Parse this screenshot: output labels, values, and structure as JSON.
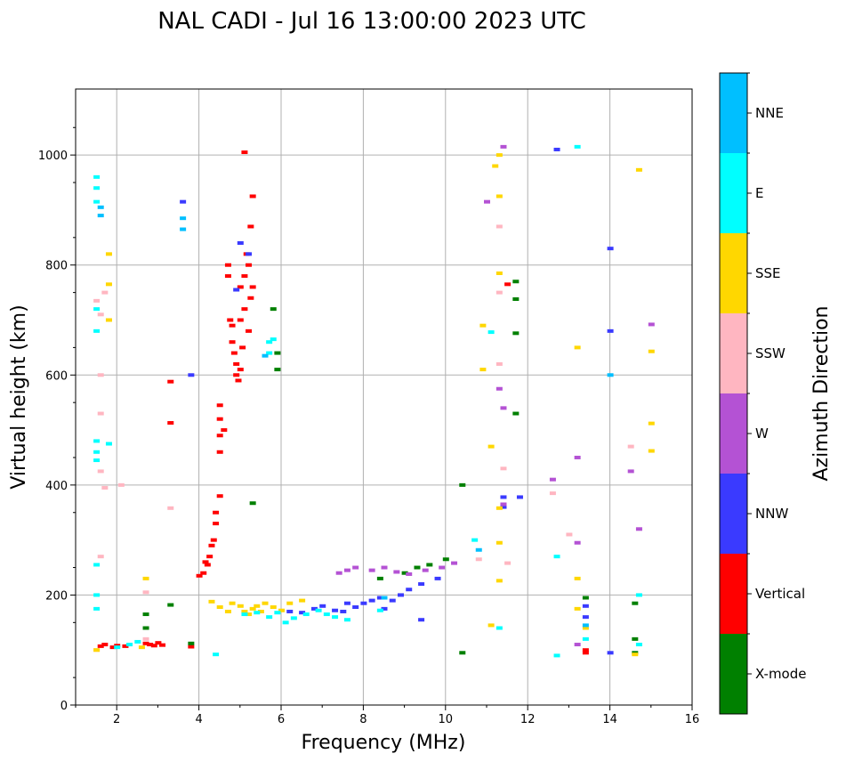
{
  "chart_data": {
    "type": "scatter",
    "title": "NAL CADI - Jul 16 13:00:00 2023 UTC",
    "xlabel": "Frequency (MHz)",
    "ylabel": "Virtual height (km)",
    "xlim": [
      1,
      16
    ],
    "ylim": [
      0,
      1120
    ],
    "xticks": [
      2,
      4,
      6,
      8,
      10,
      12,
      14,
      16
    ],
    "yticks": [
      0,
      200,
      400,
      600,
      800,
      1000
    ],
    "grid": true,
    "colorbar": {
      "label": "Azimuth Direction",
      "categories": [
        "X-mode",
        "Vertical",
        "NNW",
        "W",
        "SSW",
        "SSE",
        "E",
        "NNE"
      ],
      "colors": [
        "#008000",
        "#ff0000",
        "#3a3aff",
        "#b452d4",
        "#ffb6c1",
        "#ffd700",
        "#00ffff",
        "#00bfff"
      ]
    },
    "series": [
      {
        "name": "Vertical",
        "points": [
          [
            1.6,
            107
          ],
          [
            1.7,
            110
          ],
          [
            1.9,
            105
          ],
          [
            2.0,
            108
          ],
          [
            2.2,
            107
          ],
          [
            2.7,
            112
          ],
          [
            2.8,
            110
          ],
          [
            2.9,
            108
          ],
          [
            3.0,
            113
          ],
          [
            3.1,
            109
          ],
          [
            3.3,
            588
          ],
          [
            3.3,
            513
          ],
          [
            3.8,
            106
          ],
          [
            4.0,
            235
          ],
          [
            4.1,
            240
          ],
          [
            4.15,
            260
          ],
          [
            4.2,
            255
          ],
          [
            4.25,
            270
          ],
          [
            4.3,
            290
          ],
          [
            4.35,
            300
          ],
          [
            4.4,
            330
          ],
          [
            4.4,
            350
          ],
          [
            4.5,
            380
          ],
          [
            4.5,
            460
          ],
          [
            4.5,
            490
          ],
          [
            4.5,
            520
          ],
          [
            4.5,
            545
          ],
          [
            4.6,
            500
          ],
          [
            4.7,
            800
          ],
          [
            4.7,
            780
          ],
          [
            4.75,
            700
          ],
          [
            4.8,
            690
          ],
          [
            4.8,
            660
          ],
          [
            4.85,
            640
          ],
          [
            4.9,
            620
          ],
          [
            4.9,
            600
          ],
          [
            4.95,
            590
          ],
          [
            5.0,
            610
          ],
          [
            5.0,
            700
          ],
          [
            5.0,
            760
          ],
          [
            5.05,
            650
          ],
          [
            5.1,
            720
          ],
          [
            5.1,
            780
          ],
          [
            5.15,
            820
          ],
          [
            5.2,
            800
          ],
          [
            5.2,
            680
          ],
          [
            5.25,
            740
          ],
          [
            5.25,
            870
          ],
          [
            5.3,
            925
          ],
          [
            5.3,
            760
          ],
          [
            5.1,
            1005
          ],
          [
            13.4,
            100
          ],
          [
            13.4,
            95
          ],
          [
            11.5,
            765
          ]
        ]
      },
      {
        "name": "X-mode",
        "points": [
          [
            2.7,
            140
          ],
          [
            2.7,
            165
          ],
          [
            3.3,
            182
          ],
          [
            3.8,
            112
          ],
          [
            5.3,
            367
          ],
          [
            5.8,
            720
          ],
          [
            5.9,
            640
          ],
          [
            5.9,
            610
          ],
          [
            8.4,
            230
          ],
          [
            9.0,
            240
          ],
          [
            9.3,
            250
          ],
          [
            9.6,
            255
          ],
          [
            10.0,
            265
          ],
          [
            10.4,
            400
          ],
          [
            10.4,
            95
          ],
          [
            11.7,
            770
          ],
          [
            11.7,
            738
          ],
          [
            11.7,
            676
          ],
          [
            11.7,
            530
          ],
          [
            13.4,
            195
          ],
          [
            14.6,
            120
          ],
          [
            14.6,
            185
          ],
          [
            14.6,
            95
          ]
        ]
      },
      {
        "name": "NNW",
        "points": [
          [
            4.9,
            755
          ],
          [
            5.0,
            840
          ],
          [
            5.2,
            820
          ],
          [
            3.6,
            915
          ],
          [
            3.8,
            600
          ],
          [
            6.2,
            170
          ],
          [
            6.5,
            168
          ],
          [
            6.8,
            175
          ],
          [
            7.0,
            180
          ],
          [
            7.3,
            172
          ],
          [
            7.5,
            170
          ],
          [
            7.6,
            185
          ],
          [
            7.8,
            178
          ],
          [
            8.0,
            185
          ],
          [
            8.2,
            190
          ],
          [
            8.4,
            195
          ],
          [
            8.5,
            175
          ],
          [
            8.7,
            190
          ],
          [
            8.9,
            200
          ],
          [
            9.1,
            210
          ],
          [
            9.4,
            220
          ],
          [
            9.8,
            230
          ],
          [
            11.4,
            378
          ],
          [
            11.4,
            360
          ],
          [
            11.8,
            378
          ],
          [
            12.7,
            1010
          ],
          [
            14.0,
            830
          ],
          [
            14.0,
            680
          ],
          [
            14.0,
            95
          ],
          [
            13.4,
            180
          ],
          [
            13.4,
            160
          ],
          [
            9.4,
            155
          ]
        ]
      },
      {
        "name": "W",
        "points": [
          [
            7.4,
            240
          ],
          [
            7.6,
            245
          ],
          [
            7.8,
            250
          ],
          [
            8.2,
            245
          ],
          [
            8.5,
            250
          ],
          [
            8.8,
            242
          ],
          [
            9.1,
            238
          ],
          [
            9.5,
            245
          ],
          [
            9.9,
            250
          ],
          [
            10.2,
            258
          ],
          [
            11.0,
            915
          ],
          [
            11.3,
            575
          ],
          [
            11.4,
            540
          ],
          [
            11.4,
            365
          ],
          [
            12.6,
            410
          ],
          [
            13.2,
            450
          ],
          [
            13.2,
            295
          ],
          [
            13.2,
            110
          ],
          [
            14.5,
            425
          ],
          [
            14.7,
            320
          ],
          [
            15.0,
            692
          ],
          [
            11.4,
            1015
          ]
        ]
      },
      {
        "name": "SSW",
        "points": [
          [
            1.5,
            735
          ],
          [
            1.6,
            710
          ],
          [
            1.7,
            750
          ],
          [
            1.6,
            600
          ],
          [
            1.6,
            530
          ],
          [
            1.6,
            425
          ],
          [
            1.7,
            395
          ],
          [
            1.6,
            270
          ],
          [
            1.5,
            100
          ],
          [
            2.1,
            400
          ],
          [
            3.3,
            358
          ],
          [
            11.3,
            750
          ],
          [
            11.3,
            620
          ],
          [
            11.3,
            870
          ],
          [
            11.4,
            430
          ],
          [
            11.5,
            258
          ],
          [
            12.6,
            385
          ],
          [
            13.0,
            310
          ],
          [
            14.5,
            470
          ],
          [
            10.8,
            265
          ],
          [
            2.7,
            205
          ],
          [
            2.7,
            120
          ]
        ]
      },
      {
        "name": "SSE",
        "points": [
          [
            1.8,
            820
          ],
          [
            1.8,
            765
          ],
          [
            1.8,
            700
          ],
          [
            1.5,
            100
          ],
          [
            2.7,
            230
          ],
          [
            2.6,
            105
          ],
          [
            4.3,
            188
          ],
          [
            4.5,
            178
          ],
          [
            4.7,
            170
          ],
          [
            4.8,
            185
          ],
          [
            5.0,
            180
          ],
          [
            5.1,
            170
          ],
          [
            5.2,
            165
          ],
          [
            5.3,
            175
          ],
          [
            5.4,
            180
          ],
          [
            5.5,
            170
          ],
          [
            5.6,
            185
          ],
          [
            5.8,
            178
          ],
          [
            6.0,
            172
          ],
          [
            6.2,
            185
          ],
          [
            6.5,
            190
          ],
          [
            11.2,
            980
          ],
          [
            11.3,
            1000
          ],
          [
            11.3,
            925
          ],
          [
            11.3,
            785
          ],
          [
            11.3,
            358
          ],
          [
            11.3,
            295
          ],
          [
            11.3,
            226
          ],
          [
            11.1,
            470
          ],
          [
            10.9,
            610
          ],
          [
            10.9,
            690
          ],
          [
            11.1,
            145
          ],
          [
            13.2,
            650
          ],
          [
            13.2,
            230
          ],
          [
            13.2,
            175
          ],
          [
            14.7,
            973
          ],
          [
            15.0,
            643
          ],
          [
            15.0,
            512
          ],
          [
            15.0,
            462
          ],
          [
            14.6,
            92
          ],
          [
            13.4,
            140
          ]
        ]
      },
      {
        "name": "E",
        "points": [
          [
            1.5,
            960
          ],
          [
            1.5,
            940
          ],
          [
            1.5,
            915
          ],
          [
            1.5,
            720
          ],
          [
            1.5,
            680
          ],
          [
            1.5,
            480
          ],
          [
            1.5,
            460
          ],
          [
            1.5,
            445
          ],
          [
            1.5,
            255
          ],
          [
            1.5,
            200
          ],
          [
            1.5,
            175
          ],
          [
            1.8,
            475
          ],
          [
            2.0,
            105
          ],
          [
            2.3,
            110
          ],
          [
            2.5,
            115
          ],
          [
            4.4,
            92
          ],
          [
            5.7,
            660
          ],
          [
            5.7,
            640
          ],
          [
            5.8,
            665
          ],
          [
            5.1,
            165
          ],
          [
            5.4,
            168
          ],
          [
            5.7,
            160
          ],
          [
            5.9,
            168
          ],
          [
            6.1,
            150
          ],
          [
            6.3,
            158
          ],
          [
            6.6,
            165
          ],
          [
            6.9,
            172
          ],
          [
            7.1,
            165
          ],
          [
            7.3,
            160
          ],
          [
            7.6,
            155
          ],
          [
            8.4,
            172
          ],
          [
            11.1,
            678
          ],
          [
            11.3,
            140
          ],
          [
            10.7,
            300
          ],
          [
            12.7,
            270
          ],
          [
            12.7,
            90
          ],
          [
            13.2,
            1015
          ],
          [
            14.7,
            200
          ],
          [
            14.7,
            110
          ],
          [
            13.4,
            120
          ]
        ]
      },
      {
        "name": "NNE",
        "points": [
          [
            1.6,
            890
          ],
          [
            1.6,
            905
          ],
          [
            3.6,
            885
          ],
          [
            3.6,
            865
          ],
          [
            5.6,
            635
          ],
          [
            8.5,
            195
          ],
          [
            10.8,
            282
          ],
          [
            13.4,
            145
          ],
          [
            14.0,
            600
          ]
        ]
      }
    ]
  }
}
